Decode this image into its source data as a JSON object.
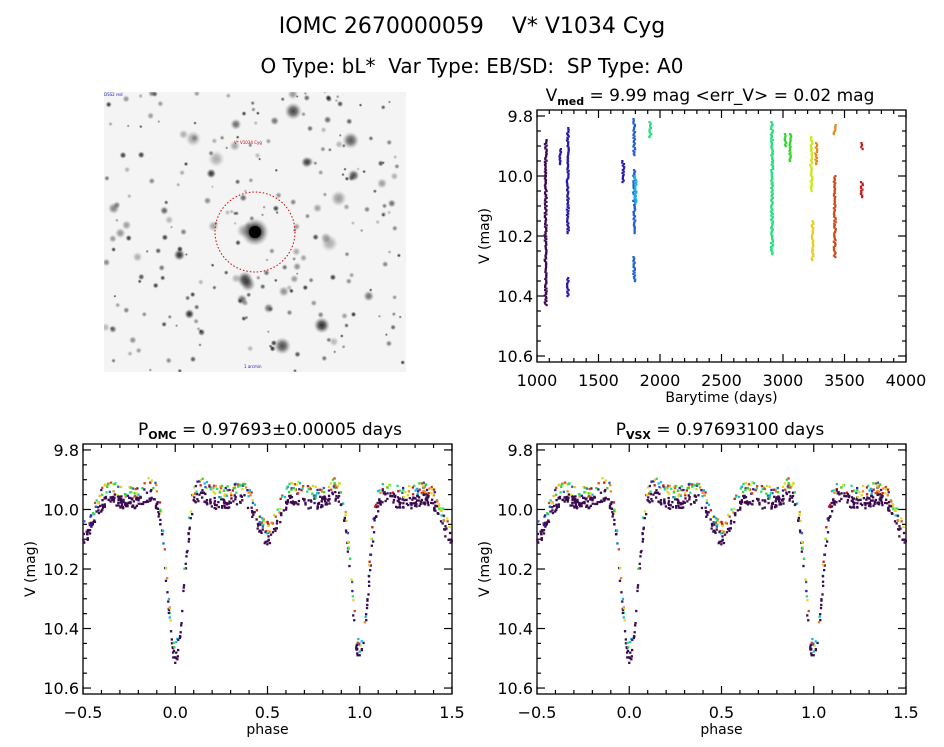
{
  "header": {
    "title_line1": "IOMC 2670000059    V* V1034 Cyg",
    "title_line2": "O Type: bL*  Var Type: EB/SD:  SP Type: A0"
  },
  "image_panel": {
    "corner_label_top_left": "DSS2 red",
    "target_label": "V* V1034 Cyg",
    "bottom_label": "1 arcmin",
    "circle_color": "#cc0000"
  },
  "palette": [
    "#3b0a4f",
    "#2a1aa8",
    "#1f5fd6",
    "#1ab7e0",
    "#22e07a",
    "#34d62e",
    "#c8e81a",
    "#e8d020",
    "#e08a20",
    "#d04a18",
    "#c81818"
  ],
  "chart_data": [
    {
      "id": "lightcurve",
      "type": "scatter",
      "title": "V_med = 9.99 mag <err_V> = 0.02 mag",
      "title_parts": {
        "pre": "V",
        "sub": "med",
        "post": " = 9.99 mag <err_V> = 0.02 mag"
      },
      "xlabel": "Barytime (days)",
      "ylabel": "V (mag)",
      "xlim": [
        1000,
        4000
      ],
      "ylim": [
        10.62,
        9.78
      ],
      "y_inverted": true,
      "xticks": [
        1000,
        1500,
        2000,
        2500,
        3000,
        3500,
        4000
      ],
      "xtick_labels": [
        "1000",
        "1500",
        "2000",
        "2500",
        "3000",
        "3500",
        "4000"
      ],
      "yticks": [
        9.8,
        10.0,
        10.2,
        10.4,
        10.6
      ],
      "ytick_labels": [
        "9.8",
        "10.0",
        "10.2",
        "10.4",
        "10.6"
      ],
      "grid": false,
      "groups": [
        {
          "x": 1070,
          "ymin": 9.88,
          "ymax": 10.43,
          "color_index": 0
        },
        {
          "x": 1190,
          "ymin": 9.91,
          "ymax": 9.96,
          "color_index": 1
        },
        {
          "x": 1250,
          "ymin": 9.84,
          "ymax": 10.19,
          "color_index": 1
        },
        {
          "x": 1250,
          "ymin": 10.34,
          "ymax": 10.4,
          "color_index": 1
        },
        {
          "x": 1700,
          "ymin": 9.95,
          "ymax": 10.02,
          "color_index": 1
        },
        {
          "x": 1790,
          "ymin": 9.81,
          "ymax": 9.93,
          "color_index": 2
        },
        {
          "x": 1790,
          "ymin": 9.98,
          "ymax": 10.19,
          "color_index": 2
        },
        {
          "x": 1800,
          "ymin": 10.0,
          "ymax": 10.09,
          "color_index": 3
        },
        {
          "x": 1790,
          "ymin": 10.27,
          "ymax": 10.35,
          "color_index": 2
        },
        {
          "x": 1920,
          "ymin": 9.82,
          "ymax": 9.87,
          "color_index": 4
        },
        {
          "x": 2910,
          "ymin": 9.82,
          "ymax": 10.26,
          "color_index": 4
        },
        {
          "x": 3020,
          "ymin": 9.86,
          "ymax": 9.9,
          "color_index": 5
        },
        {
          "x": 3060,
          "ymin": 9.86,
          "ymax": 9.95,
          "color_index": 5
        },
        {
          "x": 3230,
          "ymin": 9.87,
          "ymax": 10.05,
          "color_index": 6
        },
        {
          "x": 3240,
          "ymin": 10.15,
          "ymax": 10.28,
          "color_index": 7
        },
        {
          "x": 3270,
          "ymin": 9.89,
          "ymax": 9.96,
          "color_index": 8
        },
        {
          "x": 3420,
          "ymin": 9.83,
          "ymax": 9.86,
          "color_index": 8
        },
        {
          "x": 3420,
          "ymin": 10.0,
          "ymax": 10.27,
          "color_index": 9
        },
        {
          "x": 3640,
          "ymin": 9.89,
          "ymax": 9.91,
          "color_index": 10
        },
        {
          "x": 3640,
          "ymin": 10.02,
          "ymax": 10.07,
          "color_index": 10
        }
      ]
    },
    {
      "id": "phase_omc",
      "type": "scatter",
      "title": "P_OMC = 0.97693±0.00005 days",
      "title_parts": {
        "pre": "P",
        "sub": "OMC",
        "post": " = 0.97693±0.00005 days"
      },
      "xlabel": "phase",
      "ylabel": "V (mag)",
      "xlim": [
        -0.5,
        1.5
      ],
      "ylim": [
        10.62,
        9.78
      ],
      "y_inverted": true,
      "xticks": [
        -0.5,
        0.0,
        0.5,
        1.0,
        1.5
      ],
      "xtick_labels": [
        "−0.5",
        "0.0",
        "0.5",
        "1.0",
        "1.5"
      ],
      "yticks": [
        9.8,
        10.0,
        10.2,
        10.4,
        10.6
      ],
      "ytick_labels": [
        "9.8",
        "10.0",
        "10.2",
        "10.4",
        "10.6"
      ],
      "grid": false,
      "period_days": 0.97693,
      "curve": {
        "max_mag": 9.82,
        "primary_min_mag": 10.42,
        "primary_min_phase": 0.0,
        "secondary_min_mag": 10.1,
        "secondary_min_phase": 0.5
      }
    },
    {
      "id": "phase_vsx",
      "type": "scatter",
      "title": "P_VSX = 0.97693100 days",
      "title_parts": {
        "pre": "P",
        "sub": "VSX",
        "post": " = 0.97693100 days"
      },
      "xlabel": "phase",
      "ylabel": "V (mag)",
      "xlim": [
        -0.5,
        1.5
      ],
      "ylim": [
        10.62,
        9.78
      ],
      "y_inverted": true,
      "xticks": [
        -0.5,
        0.0,
        0.5,
        1.0,
        1.5
      ],
      "xtick_labels": [
        "−0.5",
        "0.0",
        "0.5",
        "1.0",
        "1.5"
      ],
      "yticks": [
        9.8,
        10.0,
        10.2,
        10.4,
        10.6
      ],
      "ytick_labels": [
        "9.8",
        "10.0",
        "10.2",
        "10.4",
        "10.6"
      ],
      "grid": false,
      "period_days": 0.976931,
      "curve": {
        "max_mag": 9.82,
        "primary_min_mag": 10.42,
        "primary_min_phase": 0.0,
        "secondary_min_mag": 10.1,
        "secondary_min_phase": 0.5
      }
    }
  ]
}
